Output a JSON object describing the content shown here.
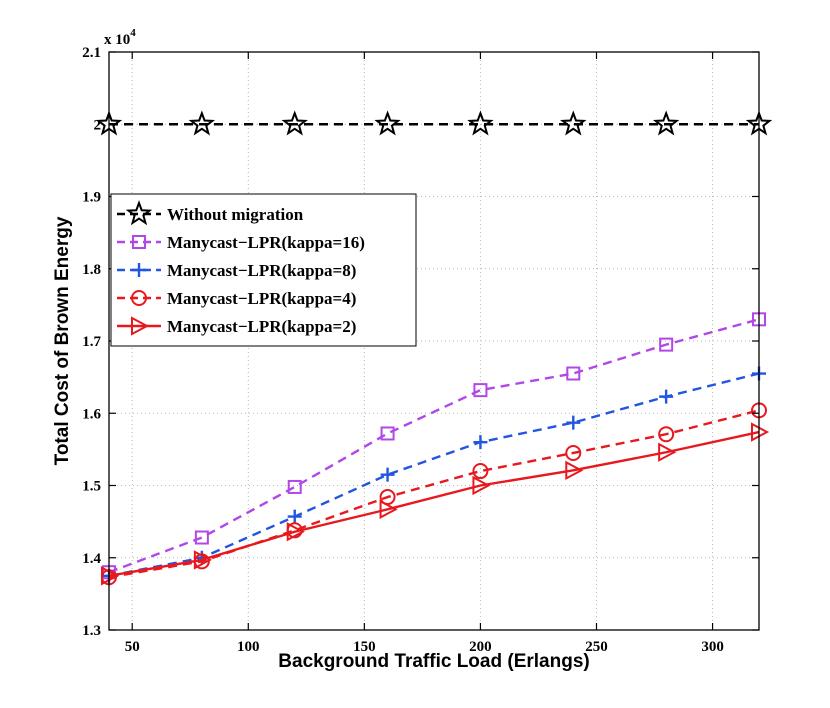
{
  "chart_data": {
    "type": "line",
    "title": "",
    "xlabel": "Background Traffic Load (Erlangs)",
    "ylabel": "Total Cost of Brown Energy",
    "y_multiplier_label": "x 10^4",
    "y_multiplier_base": "x 10",
    "y_multiplier_exp": "4",
    "xlim": [
      40,
      320
    ],
    "ylim": [
      1.3,
      2.1
    ],
    "xticks": [
      50,
      100,
      150,
      200,
      250,
      300
    ],
    "xtick_labels": [
      "50",
      "100",
      "150",
      "200",
      "250",
      "300"
    ],
    "yticks": [
      1.3,
      1.4,
      1.5,
      1.6,
      1.7,
      1.8,
      1.9,
      2.0,
      2.1
    ],
    "ytick_labels": [
      "1.3",
      "1.4",
      "1.5",
      "1.6",
      "1.7",
      "1.8",
      "1.9",
      "2",
      "2.1"
    ],
    "grid": true,
    "legend_position": "middle-left",
    "x": [
      40,
      80,
      120,
      160,
      200,
      240,
      280,
      320
    ],
    "series": [
      {
        "name": "Without migration",
        "color": "#000000",
        "marker": "star",
        "dash": "dashed",
        "values": [
          2.0,
          2.0,
          2.0,
          2.0,
          2.0,
          2.0,
          2.0,
          2.0
        ]
      },
      {
        "name": "Manycast−LPR(kappa=16)",
        "color": "#b048e8",
        "marker": "square",
        "dash": "dashed",
        "values": [
          1.38,
          1.428,
          1.498,
          1.572,
          1.632,
          1.655,
          1.695,
          1.73
        ]
      },
      {
        "name": "Manycast−LPR(kappa=8)",
        "color": "#2255e0",
        "marker": "plus",
        "dash": "dashed",
        "values": [
          1.375,
          1.4,
          1.457,
          1.515,
          1.56,
          1.587,
          1.623,
          1.655
        ]
      },
      {
        "name": "Manycast−LPR(kappa=4)",
        "color": "#e8191e",
        "marker": "circle",
        "dash": "dashed",
        "values": [
          1.373,
          1.395,
          1.438,
          1.484,
          1.52,
          1.545,
          1.571,
          1.604
        ]
      },
      {
        "name": "Manycast−LPR(kappa=2)",
        "color": "#e8191e",
        "marker": "triangle-right",
        "dash": "solid",
        "values": [
          1.375,
          1.397,
          1.436,
          1.467,
          1.5,
          1.521,
          1.546,
          1.574
        ]
      }
    ]
  }
}
